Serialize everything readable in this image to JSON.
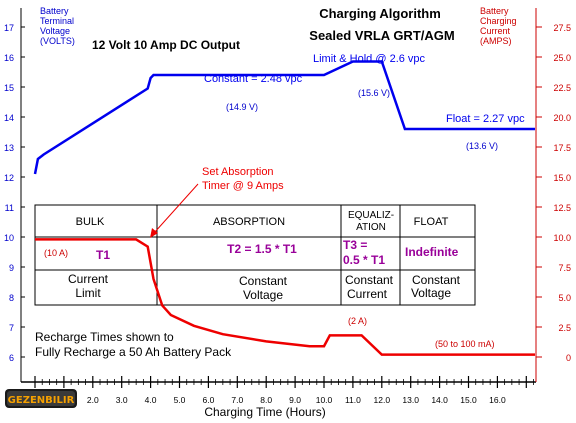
{
  "chart_data": {
    "type": "line",
    "title": "Charging Algorithm",
    "subtitle": "Sealed VRLA GRT/AGM",
    "output_label": "12 Volt 10 Amp DC Output",
    "xlabel": "Charging Time (Hours)",
    "xlim": [
      0,
      17.5
    ],
    "x_ticks": [
      "2.0",
      "3.0",
      "4.0",
      "5.0",
      "6.0",
      "7.0",
      "8.0",
      "9.0",
      "10.0",
      "11.0",
      "12.0",
      "13.0",
      "14.0",
      "15.0",
      "16.0"
    ],
    "y_left": {
      "label_lines": [
        "Battery",
        "Terminal",
        "Voltage",
        "(VOLTS)"
      ],
      "lim": [
        6,
        17
      ],
      "ticks": [
        "6",
        "7",
        "8",
        "9",
        "10",
        "11",
        "12",
        "13",
        "14",
        "15",
        "16",
        "17"
      ],
      "color": "#0000cc"
    },
    "y_right": {
      "label_lines": [
        "Battery",
        "Charging",
        "Current",
        "(AMPS)"
      ],
      "lim": [
        0,
        27.5
      ],
      "ticks": [
        "0",
        "2.5",
        "5.0",
        "7.5",
        "10.0",
        "12.5",
        "15.0",
        "17.5",
        "20.0",
        "22.5",
        "25.0",
        "27.5"
      ],
      "color": "#cc0000"
    },
    "series": [
      {
        "axis": "left",
        "color": "#0000ee",
        "x": [
          0.0,
          0.1,
          0.3,
          3.9,
          4.0,
          4.1,
          10.0,
          11.0,
          12.0,
          12.8,
          17.3
        ],
        "y": [
          12.1,
          12.6,
          12.75,
          14.95,
          15.3,
          15.4,
          15.4,
          15.85,
          15.85,
          13.6,
          13.6
        ]
      },
      {
        "axis": "right",
        "color": "#ee0000",
        "x": [
          0.0,
          3.5,
          3.9,
          4.1,
          4.4,
          4.7,
          5.5,
          6.5,
          8.0,
          9.5,
          10.0,
          10.2,
          11.3,
          12.0,
          13.0,
          17.3
        ],
        "y": [
          9.8,
          9.8,
          9.2,
          6.5,
          4.3,
          3.5,
          2.6,
          1.9,
          1.3,
          0.9,
          0.9,
          1.8,
          1.8,
          0.2,
          0.2,
          0.2
        ]
      }
    ],
    "annotations": {
      "constant": "Constant = 2.48 vpc",
      "limit_hold": "Limit & Hold @ 2.6 vpc",
      "float": "Float = 2.27 vpc",
      "v149": "(14.9 V)",
      "v156": "(15.6 V)",
      "v136": "(13.6 V)",
      "set_absorption_line1": "Set Absorption",
      "set_absorption_line2": "Timer @ 9 Amps",
      "a10": "(10 A)",
      "a2": "(2 A)",
      "a50_100": "(50 to 100 mA)",
      "recharge_line1": "Recharge Times shown to",
      "recharge_line2": "Fully Recharge a 50 Ah Battery Pack"
    },
    "table": {
      "phases": [
        {
          "header": [
            "BULK"
          ],
          "time": [
            "T1"
          ],
          "mode": [
            "Current",
            "Limit"
          ]
        },
        {
          "header": [
            "ABSORPTION"
          ],
          "time": [
            "T2 = 1.5 * T1"
          ],
          "mode": [
            "Constant",
            "Voltage"
          ]
        },
        {
          "header": [
            "EQUALIZ-",
            "ATION"
          ],
          "time": [
            "T3 =",
            "0.5 * T1"
          ],
          "mode": [
            "Constant",
            "Current"
          ]
        },
        {
          "header": [
            "FLOAT"
          ],
          "time": [
            "Indefinite"
          ],
          "mode": [
            "Constant",
            "Voltage"
          ]
        }
      ]
    }
  },
  "logo": {
    "text": "GEZENBILIR"
  }
}
